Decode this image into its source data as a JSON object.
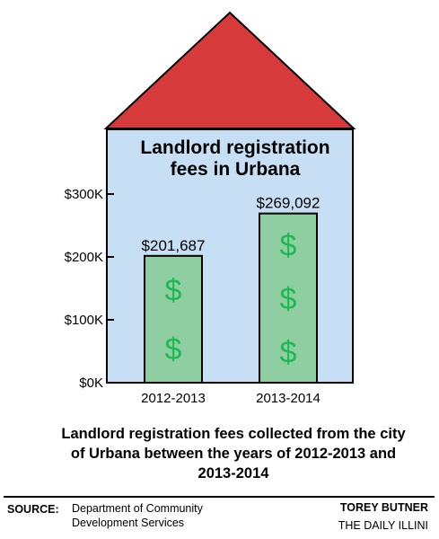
{
  "chart_data": {
    "type": "bar",
    "title_lines": [
      "Landlord registration",
      "fees in Urbana"
    ],
    "categories": [
      "2012-2013",
      "2013-2014"
    ],
    "values": [
      201687,
      269092
    ],
    "value_labels": [
      "$201,687",
      "$269,092"
    ],
    "y_ticks": [
      0,
      100000,
      200000,
      300000
    ],
    "y_tick_labels": [
      "$0K",
      "$100K",
      "$200K",
      "$300K"
    ],
    "ylim": [
      0,
      300000
    ],
    "bar_symbol": "$",
    "grid": false,
    "colors": {
      "roof": "#d63a3a",
      "house": "#c6dff4",
      "bar": "#8fcea0",
      "symbol": "#1db954"
    }
  },
  "caption": "Landlord registration fees collected from the city of Urbana between the years of 2012-2013 and 2013-2014",
  "source": {
    "label": "SOURCE:",
    "text": "Department of Community Development Services"
  },
  "credit": {
    "name": "TOREY BUTNER",
    "publication": "THE DAILY ILLINI"
  }
}
